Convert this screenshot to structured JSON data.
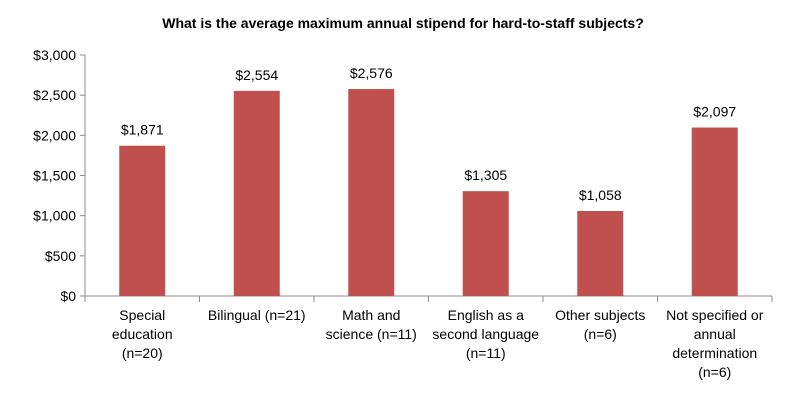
{
  "chart_data": {
    "type": "bar",
    "title": "What is the average maximum annual stipend for hard-to-staff subjects?",
    "categories": [
      "Special education (n=20)",
      "Bilingual (n=21)",
      "Math and science (n=11)",
      "English as a second language (n=11)",
      "Other subjects (n=6)",
      "Not specified or annual determination (n=6)"
    ],
    "category_lines": [
      [
        "Special",
        "education",
        "(n=20)"
      ],
      [
        "Bilingual (n=21)"
      ],
      [
        "Math and",
        "science (n=11)"
      ],
      [
        "English as a",
        "second language",
        "(n=11)"
      ],
      [
        "Other subjects",
        "(n=6)"
      ],
      [
        "Not specified or",
        "annual",
        "determination",
        "(n=6)"
      ]
    ],
    "values": [
      1871,
      2554,
      2576,
      1305,
      1058,
      2097
    ],
    "value_labels": [
      "$1,871",
      "$2,554",
      "$2,576",
      "$1,305",
      "$1,058",
      "$2,097"
    ],
    "ylim": [
      0,
      3000
    ],
    "yticks": [
      0,
      500,
      1000,
      1500,
      2000,
      2500,
      3000
    ],
    "ytick_labels": [
      "$0",
      "$500",
      "$1,000",
      "$1,500",
      "$2,000",
      "$2,500",
      "$3,000"
    ],
    "xlabel": "",
    "ylabel": "",
    "grid": false,
    "bar_color": "#c0504d",
    "axis_color": "#8c8c8c"
  }
}
